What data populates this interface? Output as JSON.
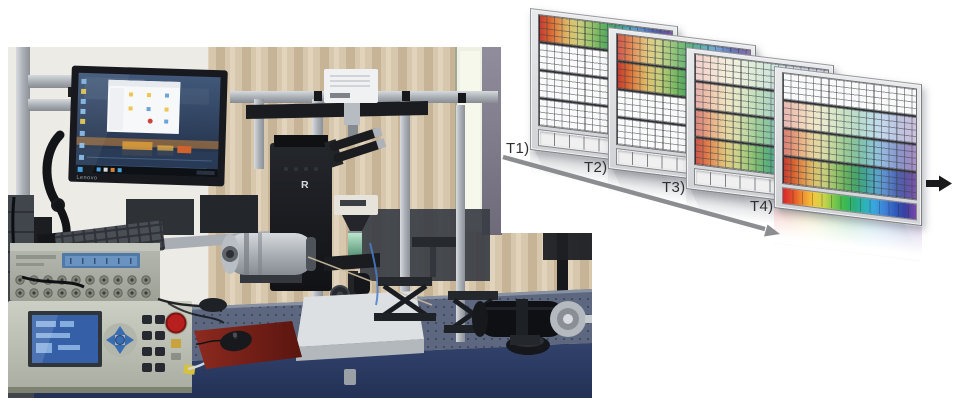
{
  "photo": {
    "description": "Photograph of the experimental setup: aluminium profile frame carrying a monitor showing a Windows desktop, a white camera box above an upright microscope, a silver cylindrical module, lab-jack stages, a black cylindrical optic, pulse generator and source-meter instruments, keyboard and mouse on a dark optical table in front of beige curtains and a bright window.",
    "monitor_brand": "Lenovo",
    "microscope_logo": "R"
  },
  "sequence": {
    "panels": [
      {
        "id": "t1",
        "label": "T1)",
        "band_opacities": [
          1,
          0,
          0,
          0
        ],
        "strip_colored": false
      },
      {
        "id": "t2",
        "label": "T2)",
        "band_opacities": [
          0.85,
          1,
          0,
          0
        ],
        "strip_colored": false
      },
      {
        "id": "t3",
        "label": "T3)",
        "band_opacities": [
          0.22,
          0.4,
          0.62,
          0.88
        ],
        "strip_colored": false
      },
      {
        "id": "t4",
        "label": "T4)",
        "band_opacities": [
          0,
          0.35,
          0.65,
          1
        ],
        "strip_colored": true
      }
    ],
    "band_rainbow": [
      "#c23b33",
      "#d9632f",
      "#e0924b",
      "#dcc06b",
      "#c9cd7c",
      "#9fc46e",
      "#6eb55e",
      "#4aa668",
      "#3fa495",
      "#57a9c6",
      "#5e8fd0",
      "#4d68b4",
      "#5a55a6",
      "#7e57a8"
    ],
    "strip_rainbow": [
      "#d8262c",
      "#e4562a",
      "#ef9130",
      "#f2c83d",
      "#c9d44a",
      "#7fc74b",
      "#3dbb4e",
      "#2bae7e",
      "#2fb3bb",
      "#3aa4e0",
      "#3f7ed6",
      "#2f58b8",
      "#3a3f9f",
      "#7a47ab"
    ],
    "timeline_arrow_color": "#8b8d90",
    "output_arrow_color": "#1a1a1c"
  }
}
